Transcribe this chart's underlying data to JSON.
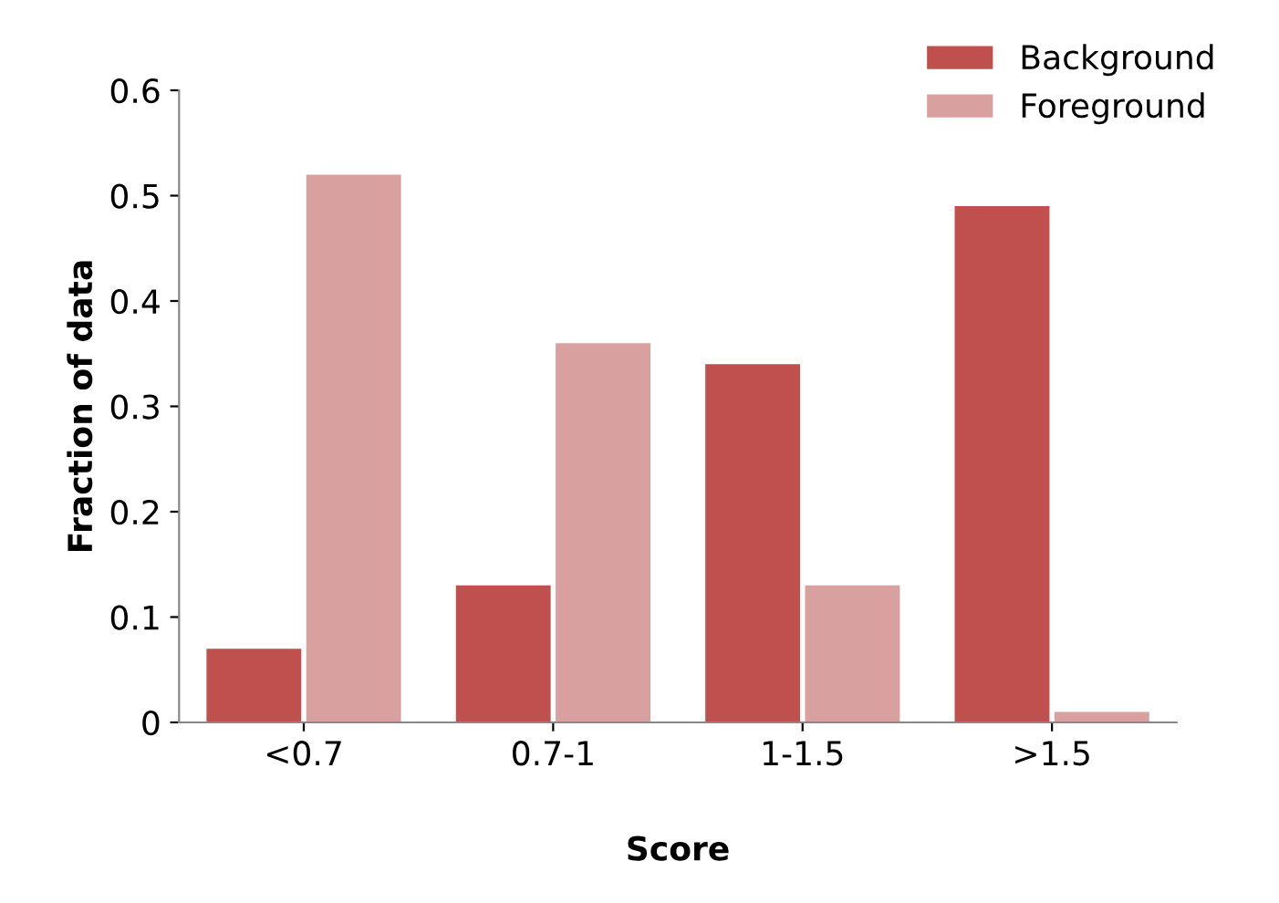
{
  "chart_data": {
    "type": "bar",
    "xlabel": "Score",
    "ylabel": "Fraction of data",
    "categories": [
      "<0.7",
      "0.7-1",
      "1-1.5",
      ">1.5"
    ],
    "series": [
      {
        "name": "Background",
        "color": "#c0504d",
        "values": [
          0.07,
          0.13,
          0.34,
          0.49
        ]
      },
      {
        "name": "Foreground",
        "color": "#d9a0a0",
        "values": [
          0.52,
          0.36,
          0.13,
          0.01
        ]
      }
    ],
    "ylim": [
      0,
      0.6
    ],
    "yticks": [
      0,
      0.1,
      0.2,
      0.3,
      0.4,
      0.5,
      0.6
    ],
    "grid": false,
    "legend": "top right"
  }
}
